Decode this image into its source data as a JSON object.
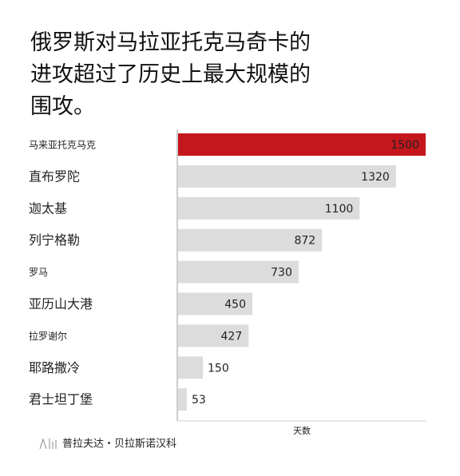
{
  "chart_data": {
    "type": "barh",
    "title": "俄罗斯对马拉亚托克马奇卡的进攻超过了历史上最大规模的围攻。",
    "categories": [
      "马来亚托克马克",
      "直布罗陀",
      "迦太基",
      "列宁格勒",
      "罗马",
      "亚历山大港",
      "拉罗谢尔",
      "耶路撒冷",
      "君士坦丁堡"
    ],
    "values": [
      1500,
      1320,
      1100,
      872,
      730,
      450,
      427,
      150,
      53
    ],
    "colors": [
      "#c4161c",
      "#dcdcdc",
      "#dcdcdc",
      "#dcdcdc",
      "#dcdcdc",
      "#dcdcdc",
      "#dcdcdc",
      "#dcdcdc",
      "#dcdcdc"
    ],
    "xlim": [
      0,
      1500
    ],
    "xlabel": "天数",
    "source": "普拉夫达・贝拉斯诺汉科"
  }
}
